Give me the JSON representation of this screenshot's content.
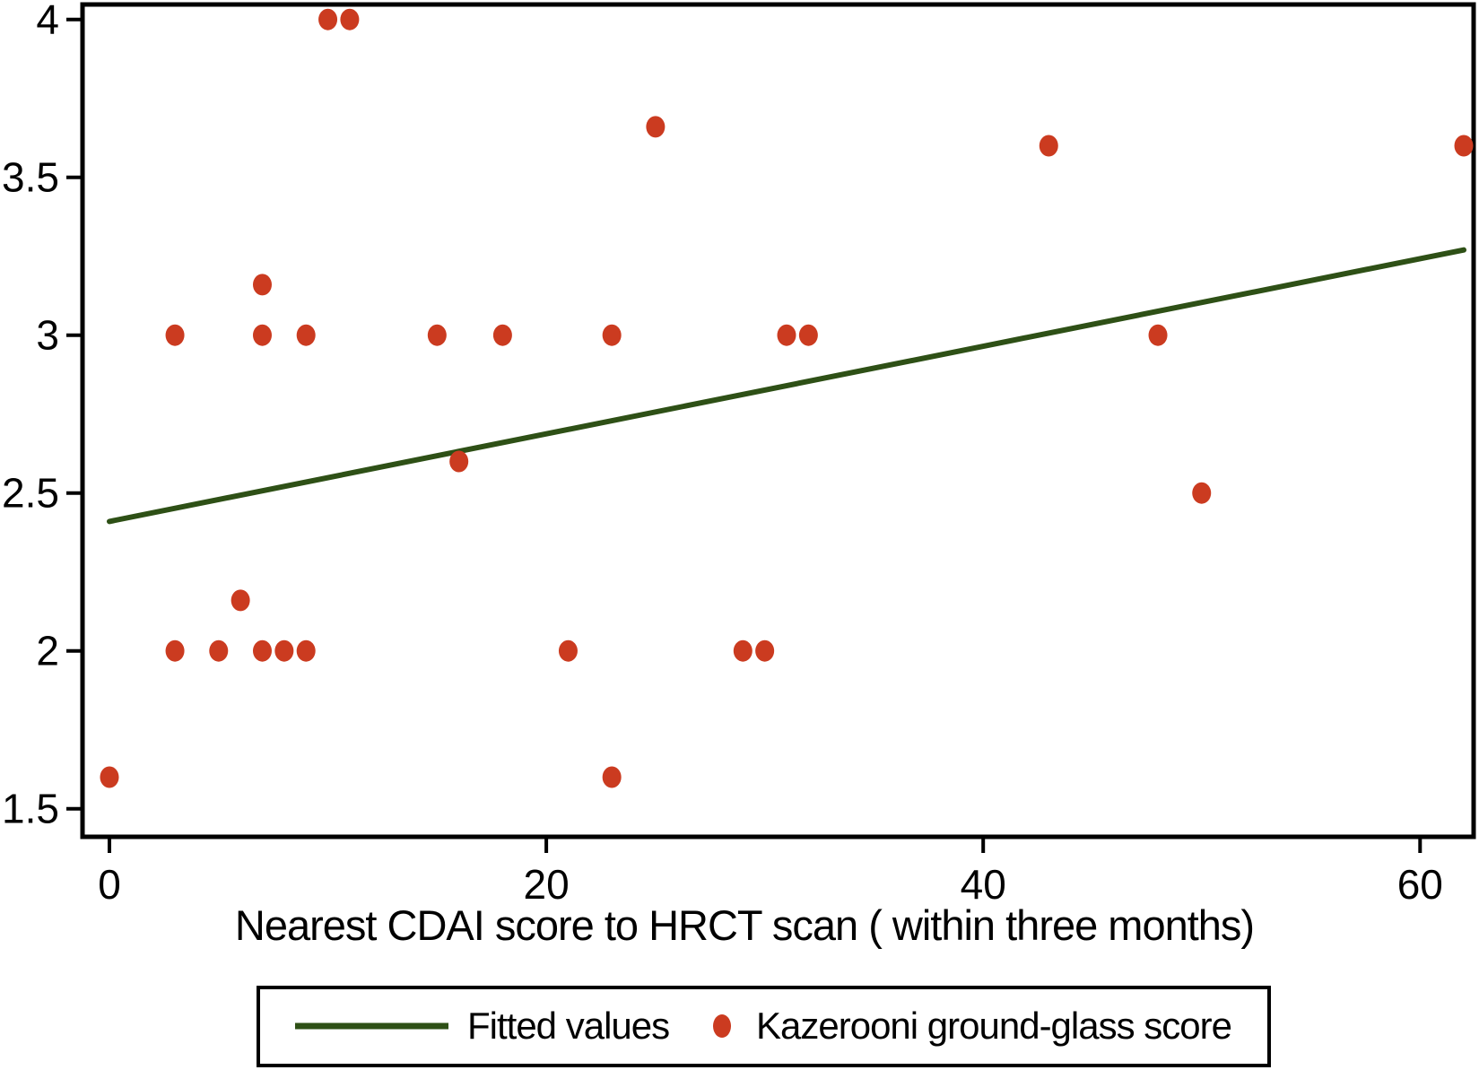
{
  "chart_data": {
    "type": "scatter",
    "xlabel": "Nearest CDAI score to HRCT scan ( within three months)",
    "ylabel": "",
    "xlim": [
      -1.2,
      62.5
    ],
    "ylim": [
      1.41,
      4.05
    ],
    "grid": false,
    "legend_position": "bottom",
    "x_ticks": [
      {
        "v": 0,
        "label": "0"
      },
      {
        "v": 20,
        "label": "20"
      },
      {
        "v": 40,
        "label": "40"
      },
      {
        "v": 60,
        "label": "60"
      }
    ],
    "y_ticks": [
      {
        "v": 4,
        "label": "4"
      },
      {
        "v": 3.5,
        "label": "3.5"
      },
      {
        "v": 3,
        "label": "3"
      },
      {
        "v": 2.5,
        "label": "2.5"
      },
      {
        "v": 2,
        "label": "2"
      },
      {
        "v": 1.5,
        "label": "1.5"
      }
    ],
    "series": [
      {
        "name": "Fitted values",
        "type": "line",
        "color": "#2e5016",
        "points": [
          [
            0,
            2.41
          ],
          [
            62,
            3.27
          ]
        ]
      },
      {
        "name": "Kazerooni ground-glass score",
        "type": "scatter",
        "color": "#cb3b20",
        "points": [
          [
            0,
            1.6
          ],
          [
            3,
            2
          ],
          [
            3,
            3
          ],
          [
            5,
            2
          ],
          [
            6,
            2.16
          ],
          [
            7,
            2
          ],
          [
            7,
            3
          ],
          [
            7,
            3.16
          ],
          [
            8,
            2
          ],
          [
            9,
            2
          ],
          [
            9,
            3
          ],
          [
            10,
            4
          ],
          [
            11,
            4
          ],
          [
            15,
            3
          ],
          [
            16,
            2.6
          ],
          [
            18,
            3
          ],
          [
            21,
            2
          ],
          [
            23,
            1.6
          ],
          [
            23,
            3
          ],
          [
            25,
            3.66
          ],
          [
            29,
            2
          ],
          [
            30,
            2
          ],
          [
            31,
            3
          ],
          [
            32,
            3
          ],
          [
            43,
            3.6
          ],
          [
            48,
            3
          ],
          [
            50,
            2.5
          ],
          [
            62,
            3.6
          ]
        ]
      }
    ],
    "colors": {
      "axis": "#000000",
      "background": "#ffffff"
    }
  }
}
